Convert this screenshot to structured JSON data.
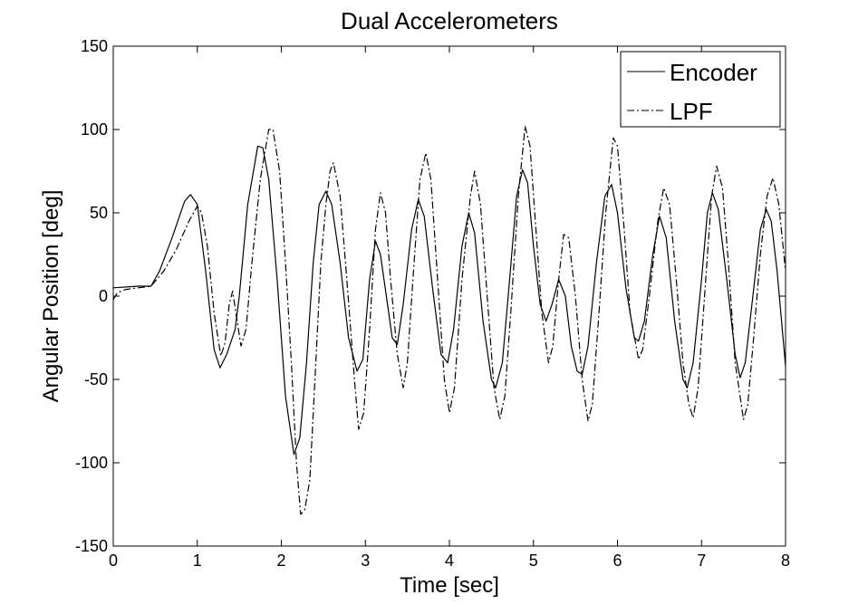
{
  "chart_data": {
    "type": "line",
    "title": "Dual Accelerometers",
    "xlabel": "Time [sec]",
    "ylabel": "Angular Position [deg]",
    "xlim": [
      0,
      8
    ],
    "ylim": [
      -150,
      150
    ],
    "xticks": [
      0,
      1,
      2,
      3,
      4,
      5,
      6,
      7,
      8
    ],
    "yticks": [
      150,
      100,
      50,
      0,
      -50,
      -100,
      -150
    ],
    "legend_position": "top-right",
    "grid": false,
    "series": [
      {
        "name": "Encoder",
        "style": "solid",
        "color": "#000000",
        "points": [
          [
            0.0,
            5
          ],
          [
            0.3,
            6
          ],
          [
            0.45,
            6
          ],
          [
            0.55,
            15
          ],
          [
            0.7,
            35
          ],
          [
            0.85,
            57
          ],
          [
            0.92,
            61
          ],
          [
            1.0,
            55
          ],
          [
            1.1,
            15
          ],
          [
            1.2,
            -32
          ],
          [
            1.27,
            -43
          ],
          [
            1.35,
            -35
          ],
          [
            1.45,
            -20
          ],
          [
            1.5,
            0
          ],
          [
            1.6,
            55
          ],
          [
            1.72,
            90
          ],
          [
            1.78,
            89
          ],
          [
            1.85,
            70
          ],
          [
            1.95,
            10
          ],
          [
            2.05,
            -60
          ],
          [
            2.15,
            -95
          ],
          [
            2.22,
            -85
          ],
          [
            2.3,
            -40
          ],
          [
            2.38,
            20
          ],
          [
            2.45,
            55
          ],
          [
            2.53,
            63
          ],
          [
            2.6,
            55
          ],
          [
            2.7,
            20
          ],
          [
            2.8,
            -25
          ],
          [
            2.9,
            -45
          ],
          [
            2.97,
            -38
          ],
          [
            3.05,
            10
          ],
          [
            3.12,
            33
          ],
          [
            3.18,
            25
          ],
          [
            3.25,
            0
          ],
          [
            3.32,
            -25
          ],
          [
            3.38,
            -29
          ],
          [
            3.45,
            -5
          ],
          [
            3.55,
            40
          ],
          [
            3.63,
            58
          ],
          [
            3.7,
            48
          ],
          [
            3.8,
            5
          ],
          [
            3.9,
            -35
          ],
          [
            3.98,
            -40
          ],
          [
            4.05,
            -20
          ],
          [
            4.15,
            30
          ],
          [
            4.23,
            50
          ],
          [
            4.3,
            38
          ],
          [
            4.4,
            -15
          ],
          [
            4.5,
            -50
          ],
          [
            4.55,
            -55
          ],
          [
            4.63,
            -40
          ],
          [
            4.7,
            0
          ],
          [
            4.8,
            60
          ],
          [
            4.87,
            76
          ],
          [
            4.93,
            68
          ],
          [
            5.0,
            30
          ],
          [
            5.08,
            -5
          ],
          [
            5.15,
            -15
          ],
          [
            5.22,
            -5
          ],
          [
            5.3,
            10
          ],
          [
            5.38,
            0
          ],
          [
            5.45,
            -30
          ],
          [
            5.52,
            -45
          ],
          [
            5.58,
            -47
          ],
          [
            5.65,
            -30
          ],
          [
            5.75,
            20
          ],
          [
            5.85,
            60
          ],
          [
            5.93,
            67
          ],
          [
            6.0,
            50
          ],
          [
            6.1,
            5
          ],
          [
            6.2,
            -25
          ],
          [
            6.25,
            -27
          ],
          [
            6.32,
            -15
          ],
          [
            6.42,
            25
          ],
          [
            6.5,
            48
          ],
          [
            6.58,
            35
          ],
          [
            6.68,
            -15
          ],
          [
            6.78,
            -50
          ],
          [
            6.83,
            -55
          ],
          [
            6.9,
            -40
          ],
          [
            7.0,
            10
          ],
          [
            7.07,
            50
          ],
          [
            7.13,
            62
          ],
          [
            7.2,
            52
          ],
          [
            7.3,
            10
          ],
          [
            7.4,
            -35
          ],
          [
            7.46,
            -49
          ],
          [
            7.52,
            -40
          ],
          [
            7.6,
            -5
          ],
          [
            7.7,
            40
          ],
          [
            7.77,
            52
          ],
          [
            7.83,
            45
          ],
          [
            7.9,
            15
          ],
          [
            8.0,
            -42
          ]
        ]
      },
      {
        "name": "LPF",
        "style": "dashdot",
        "color": "#000000",
        "points": [
          [
            0.0,
            -2
          ],
          [
            0.05,
            2
          ],
          [
            0.15,
            4
          ],
          [
            0.3,
            5
          ],
          [
            0.45,
            6
          ],
          [
            0.6,
            15
          ],
          [
            0.75,
            28
          ],
          [
            0.9,
            45
          ],
          [
            1.0,
            54
          ],
          [
            1.05,
            50
          ],
          [
            1.12,
            30
          ],
          [
            1.2,
            -10
          ],
          [
            1.28,
            -36
          ],
          [
            1.33,
            -28
          ],
          [
            1.38,
            -5
          ],
          [
            1.42,
            3
          ],
          [
            1.46,
            -10
          ],
          [
            1.52,
            -30
          ],
          [
            1.58,
            -20
          ],
          [
            1.65,
            20
          ],
          [
            1.75,
            70
          ],
          [
            1.85,
            100
          ],
          [
            1.9,
            100
          ],
          [
            1.98,
            75
          ],
          [
            2.05,
            20
          ],
          [
            2.12,
            -40
          ],
          [
            2.18,
            -100
          ],
          [
            2.23,
            -131
          ],
          [
            2.28,
            -128
          ],
          [
            2.34,
            -110
          ],
          [
            2.4,
            -50
          ],
          [
            2.47,
            20
          ],
          [
            2.53,
            55
          ],
          [
            2.58,
            75
          ],
          [
            2.62,
            80
          ],
          [
            2.7,
            60
          ],
          [
            2.78,
            10
          ],
          [
            2.87,
            -50
          ],
          [
            2.92,
            -80
          ],
          [
            2.98,
            -70
          ],
          [
            3.05,
            -20
          ],
          [
            3.12,
            40
          ],
          [
            3.18,
            62
          ],
          [
            3.24,
            50
          ],
          [
            3.3,
            10
          ],
          [
            3.38,
            -35
          ],
          [
            3.45,
            -55
          ],
          [
            3.5,
            -40
          ],
          [
            3.58,
            20
          ],
          [
            3.65,
            70
          ],
          [
            3.72,
            86
          ],
          [
            3.78,
            70
          ],
          [
            3.86,
            10
          ],
          [
            3.94,
            -50
          ],
          [
            4.0,
            -70
          ],
          [
            4.06,
            -55
          ],
          [
            4.15,
            10
          ],
          [
            4.25,
            60
          ],
          [
            4.3,
            75
          ],
          [
            4.37,
            55
          ],
          [
            4.45,
            0
          ],
          [
            4.53,
            -55
          ],
          [
            4.6,
            -74
          ],
          [
            4.66,
            -60
          ],
          [
            4.73,
            -10
          ],
          [
            4.82,
            60
          ],
          [
            4.9,
            102
          ],
          [
            4.96,
            90
          ],
          [
            5.03,
            40
          ],
          [
            5.1,
            -10
          ],
          [
            5.18,
            -40
          ],
          [
            5.23,
            -30
          ],
          [
            5.3,
            10
          ],
          [
            5.36,
            37
          ],
          [
            5.42,
            35
          ],
          [
            5.5,
            0
          ],
          [
            5.58,
            -50
          ],
          [
            5.65,
            -75
          ],
          [
            5.7,
            -65
          ],
          [
            5.78,
            -10
          ],
          [
            5.86,
            50
          ],
          [
            5.95,
            95
          ],
          [
            6.0,
            90
          ],
          [
            6.08,
            40
          ],
          [
            6.15,
            -10
          ],
          [
            6.25,
            -38
          ],
          [
            6.3,
            -32
          ],
          [
            6.38,
            0
          ],
          [
            6.48,
            45
          ],
          [
            6.55,
            65
          ],
          [
            6.62,
            55
          ],
          [
            6.7,
            10
          ],
          [
            6.78,
            -40
          ],
          [
            6.85,
            -65
          ],
          [
            6.9,
            -73
          ],
          [
            6.96,
            -55
          ],
          [
            7.05,
            10
          ],
          [
            7.12,
            60
          ],
          [
            7.18,
            78
          ],
          [
            7.25,
            65
          ],
          [
            7.32,
            20
          ],
          [
            7.4,
            -40
          ],
          [
            7.5,
            -74
          ],
          [
            7.55,
            -65
          ],
          [
            7.62,
            -25
          ],
          [
            7.7,
            25
          ],
          [
            7.78,
            60
          ],
          [
            7.85,
            71
          ],
          [
            7.92,
            55
          ],
          [
            8.0,
            15
          ]
        ]
      }
    ]
  }
}
